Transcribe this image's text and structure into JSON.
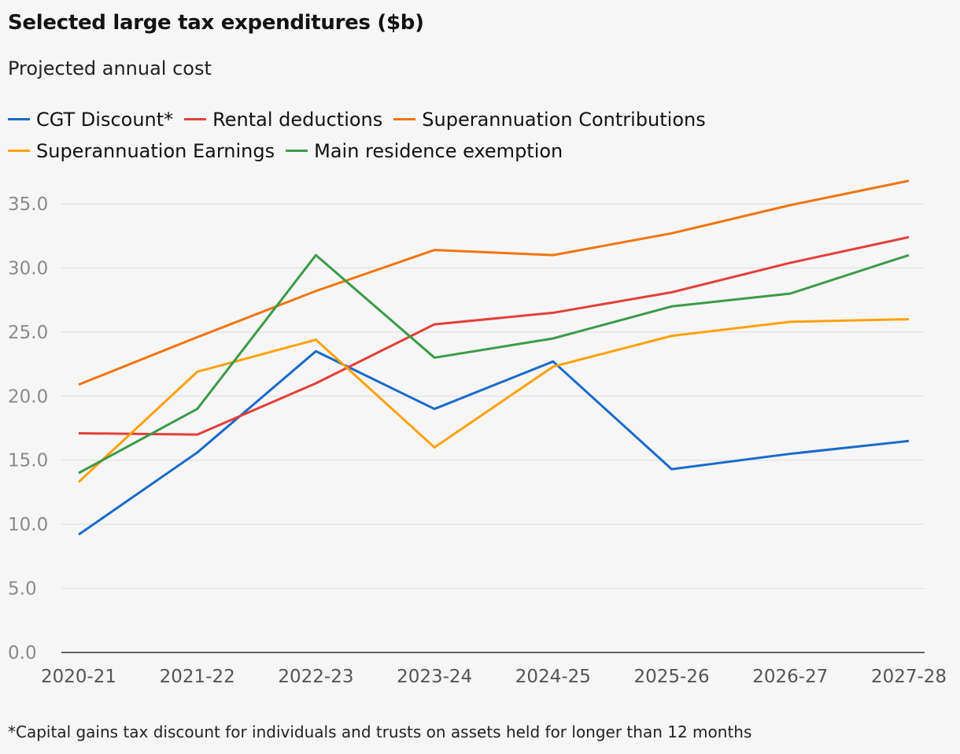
{
  "chart_data": {
    "type": "line",
    "title": "Selected large tax expenditures ($b)",
    "subtitle": "Projected annual cost",
    "footnote": "*Capital gains tax discount for individuals and trusts on assets held for longer than 12 months",
    "categories": [
      "2020-21",
      "2021-22",
      "2022-23",
      "2023-24",
      "2024-25",
      "2025-26",
      "2026-27",
      "2027-28"
    ],
    "ylim": [
      0,
      35
    ],
    "yticks": [
      "0.0",
      "5.0",
      "10.0",
      "15.0",
      "20.0",
      "25.0",
      "30.0",
      "35.0"
    ],
    "grid": true,
    "legend_placement": "top",
    "series": [
      {
        "name": "CGT Discount*",
        "color": "#1a6bc8",
        "values": [
          9.2,
          15.6,
          23.5,
          19.0,
          22.7,
          14.3,
          15.5,
          16.5
        ]
      },
      {
        "name": "Rental deductions",
        "color": "#e2403a",
        "values": [
          17.1,
          17.0,
          21.0,
          25.6,
          26.5,
          28.1,
          30.4,
          32.4
        ]
      },
      {
        "name": "Superannuation Contributions",
        "color": "#f0750f",
        "values": [
          20.9,
          24.6,
          28.2,
          31.4,
          31.0,
          32.7,
          34.9,
          36.8
        ]
      },
      {
        "name": "Superannuation Earnings",
        "color": "#ffa10a",
        "values": [
          13.3,
          21.9,
          24.4,
          16.0,
          22.3,
          24.7,
          25.8,
          26.0
        ]
      },
      {
        "name": "Main residence exemption",
        "color": "#3c9a48",
        "values": [
          14.0,
          19.0,
          31.0,
          23.0,
          24.5,
          27.0,
          28.0,
          31.0
        ]
      }
    ]
  }
}
